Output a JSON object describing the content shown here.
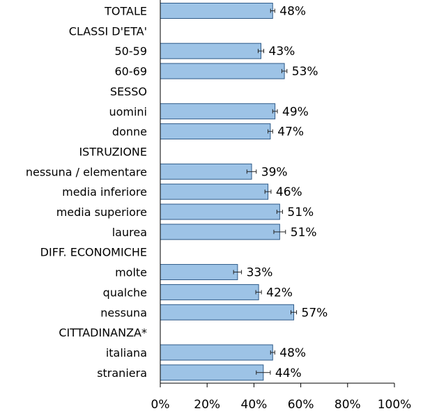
{
  "chart_data": {
    "type": "bar",
    "orientation": "horizontal",
    "xlim": [
      0,
      100
    ],
    "x_ticks": [
      "0%",
      "20%",
      "40%",
      "60%",
      "80%",
      "100%"
    ],
    "x_tick_values": [
      0,
      20,
      40,
      60,
      80,
      100
    ],
    "grid": false,
    "error_bars": true,
    "rows": [
      {
        "label": "TOTALE",
        "value": 48,
        "display": "48%",
        "err": 0.9
      },
      {
        "label": "CLASSI D'ETA'",
        "value": null,
        "display": ""
      },
      {
        "label": "50-59",
        "value": 43,
        "display": "43%",
        "err": 1.2
      },
      {
        "label": "60-69",
        "value": 53,
        "display": "53%",
        "err": 1.1
      },
      {
        "label": "SESSO",
        "value": null,
        "display": ""
      },
      {
        "label": "uomini",
        "value": 49,
        "display": "49%",
        "err": 1.0
      },
      {
        "label": "donne",
        "value": 47,
        "display": "47%",
        "err": 1.0
      },
      {
        "label": "ISTRUZIONE",
        "value": null,
        "display": ""
      },
      {
        "label": "nessuna / elementare",
        "value": 39,
        "display": "39%",
        "err": 2.0
      },
      {
        "label": "media inferiore",
        "value": 46,
        "display": "46%",
        "err": 1.3
      },
      {
        "label": "media superiore",
        "value": 51,
        "display": "51%",
        "err": 1.2
      },
      {
        "label": "laurea",
        "value": 51,
        "display": "51%",
        "err": 2.5
      },
      {
        "label": "DIFF. ECONOMICHE",
        "value": null,
        "display": ""
      },
      {
        "label": "molte",
        "value": 33,
        "display": "33%",
        "err": 1.7
      },
      {
        "label": "qualche",
        "value": 42,
        "display": "42%",
        "err": 1.2
      },
      {
        "label": "nessuna",
        "value": 57,
        "display": "57%",
        "err": 1.2
      },
      {
        "label": "CITTADINANZA*",
        "value": null,
        "display": ""
      },
      {
        "label": "italiana",
        "value": 48,
        "display": "48%",
        "err": 0.9
      },
      {
        "label": "straniera",
        "value": 44,
        "display": "44%",
        "err": 3.0
      }
    ],
    "colors": {
      "bar_fill": "#9dc3e6",
      "bar_stroke": "#2e5a88"
    }
  }
}
